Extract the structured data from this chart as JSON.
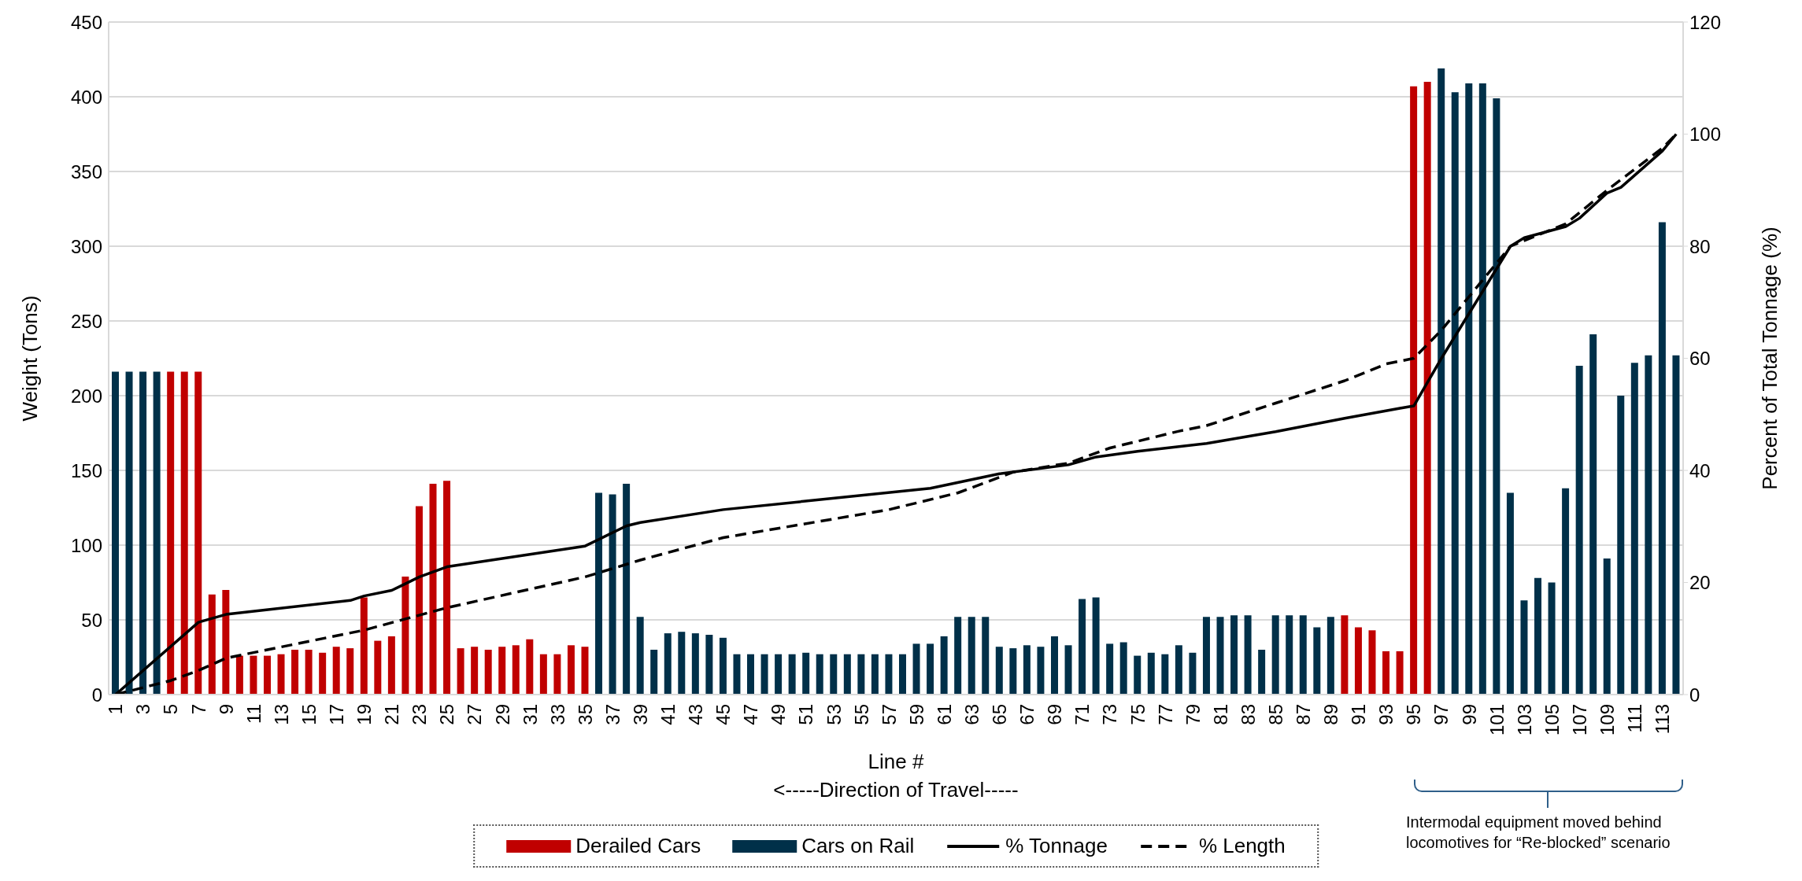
{
  "chart_data": {
    "type": "bar",
    "xlabel": "Line #\n<-----Direction of Travel-----",
    "ylabel": "Weight (Tons)",
    "y2label": "Percent of Total Tonnage (%)",
    "x": [
      1,
      2,
      3,
      4,
      5,
      6,
      7,
      8,
      9,
      10,
      11,
      12,
      13,
      14,
      15,
      16,
      17,
      18,
      19,
      20,
      21,
      22,
      23,
      24,
      25,
      26,
      27,
      28,
      29,
      30,
      31,
      32,
      33,
      34,
      35,
      36,
      37,
      38,
      39,
      40,
      41,
      42,
      43,
      44,
      45,
      46,
      47,
      48,
      49,
      50,
      51,
      52,
      53,
      54,
      55,
      56,
      57,
      58,
      59,
      60,
      61,
      62,
      63,
      64,
      65,
      66,
      67,
      68,
      69,
      70,
      71,
      72,
      73,
      74,
      75,
      76,
      77,
      78,
      79,
      80,
      81,
      82,
      83,
      84,
      85,
      86,
      87,
      88,
      89,
      90,
      91,
      92,
      93,
      94,
      95,
      96,
      97,
      98,
      99,
      100,
      101,
      102,
      103,
      104,
      105,
      106,
      107,
      108,
      109,
      110,
      111,
      112,
      113,
      114
    ],
    "xlim": [
      0.5,
      114.5
    ],
    "xticks": [
      1,
      3,
      5,
      7,
      9,
      11,
      13,
      15,
      17,
      19,
      21,
      23,
      25,
      27,
      29,
      31,
      33,
      35,
      37,
      39,
      41,
      43,
      45,
      47,
      49,
      51,
      53,
      55,
      57,
      59,
      61,
      63,
      65,
      67,
      69,
      71,
      73,
      75,
      77,
      79,
      81,
      83,
      85,
      87,
      89,
      91,
      93,
      95,
      97,
      99,
      101,
      103,
      105,
      107,
      109,
      111,
      113
    ],
    "ylim": [
      0,
      450
    ],
    "yticks": [
      0,
      50,
      100,
      150,
      200,
      250,
      300,
      350,
      400,
      450
    ],
    "y2lim": [
      0,
      120
    ],
    "y2ticks": [
      0,
      20,
      40,
      60,
      80,
      100,
      120
    ],
    "grid": "y",
    "legend": "bottom",
    "marker": "none",
    "series": [
      {
        "name": "Derailed Cars",
        "color": "#c00000",
        "values": [
          null,
          null,
          null,
          null,
          216,
          216,
          216,
          67,
          70,
          26,
          26,
          26,
          27,
          30,
          30,
          28,
          32,
          31,
          65,
          36,
          39,
          79,
          126,
          141,
          143,
          31,
          32,
          30,
          32,
          33,
          37,
          27,
          27,
          33,
          32,
          null,
          null,
          null,
          null,
          null,
          null,
          null,
          null,
          null,
          null,
          null,
          null,
          null,
          null,
          null,
          null,
          null,
          null,
          null,
          null,
          null,
          null,
          null,
          null,
          null,
          null,
          null,
          null,
          null,
          null,
          null,
          null,
          null,
          null,
          null,
          null,
          null,
          null,
          null,
          null,
          null,
          null,
          null,
          null,
          null,
          null,
          null,
          null,
          null,
          null,
          null,
          null,
          null,
          null,
          53,
          45,
          43,
          29,
          29,
          407,
          410,
          null,
          null,
          null,
          null,
          null,
          null,
          null,
          null,
          null,
          null,
          null,
          null,
          null,
          null,
          null,
          null,
          null,
          null
        ]
      },
      {
        "name": "Cars on Rail",
        "color": "#003049",
        "values": [
          216,
          216,
          216,
          216,
          null,
          null,
          null,
          null,
          null,
          null,
          null,
          null,
          null,
          null,
          null,
          null,
          null,
          null,
          null,
          null,
          null,
          null,
          null,
          null,
          null,
          null,
          null,
          null,
          null,
          null,
          null,
          null,
          null,
          null,
          null,
          135,
          134,
          141,
          52,
          30,
          41,
          42,
          41,
          40,
          38,
          27,
          27,
          27,
          27,
          27,
          28,
          27,
          27,
          27,
          27,
          27,
          27,
          27,
          34,
          34,
          39,
          52,
          52,
          52,
          32,
          31,
          33,
          32,
          39,
          33,
          64,
          65,
          34,
          35,
          26,
          28,
          27,
          33,
          28,
          52,
          52,
          53,
          53,
          30,
          53,
          53,
          53,
          45,
          52,
          null,
          null,
          null,
          null,
          null,
          null,
          null,
          419,
          403,
          409,
          409,
          399,
          135,
          63,
          78,
          75,
          138,
          220,
          241,
          91,
          200,
          222,
          227,
          316,
          227
        ]
      },
      {
        "name": "% Tonnage",
        "type": "line",
        "axis": "y2",
        "color": "#000000",
        "line_style": "solid",
        "x": [
          1,
          7,
          9,
          18,
          19,
          21,
          23,
          25,
          35,
          38,
          39,
          45,
          60,
          65,
          70,
          72,
          75,
          80,
          85,
          90,
          94,
          95,
          97,
          100,
          102,
          103,
          106,
          107,
          109,
          110,
          113,
          114
        ],
        "values": [
          0,
          12.9,
          14.3,
          16.8,
          17.6,
          18.6,
          21,
          22.8,
          26.5,
          30.1,
          30.7,
          33,
          36.8,
          39.4,
          41,
          42.4,
          43.4,
          44.8,
          46.9,
          49.3,
          51.1,
          51.5,
          60,
          72,
          80,
          81.5,
          83.5,
          85,
          89.5,
          90.5,
          97,
          100
        ]
      },
      {
        "name": "% Length",
        "type": "line",
        "axis": "y2",
        "color": "#000000",
        "line_style": "dashed",
        "x": [
          1,
          5,
          7,
          9,
          19,
          25,
          35,
          39,
          45,
          57,
          62,
          66,
          70,
          73,
          78,
          80,
          85,
          90,
          93,
          95,
          97,
          101,
          102,
          106,
          109,
          113,
          114
        ],
        "values": [
          0,
          2.5,
          4.3,
          6.5,
          11.5,
          15.5,
          21,
          24,
          28,
          33,
          36,
          39.7,
          41.3,
          44,
          47,
          48,
          52,
          56,
          59,
          60,
          65,
          77,
          80,
          84,
          90,
          97.5,
          100
        ]
      }
    ],
    "annotations": [
      "Intermodal equipment moved behind locomotives for “Re-blocked” scenario"
    ]
  }
}
